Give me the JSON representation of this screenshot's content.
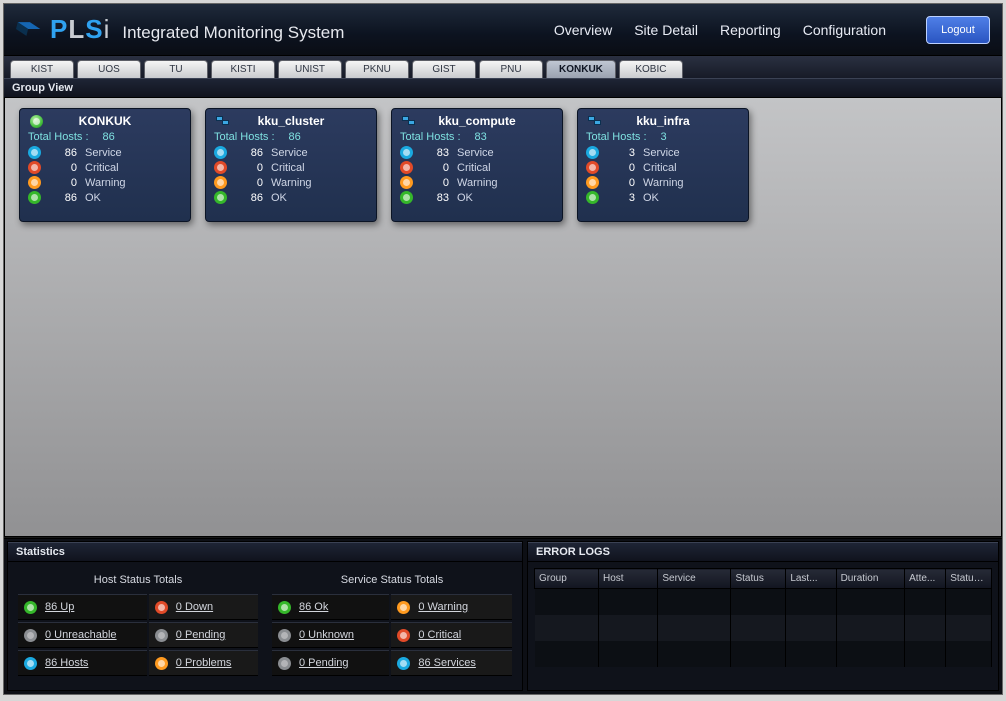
{
  "header": {
    "logo_brand_1": "P",
    "logo_brand_2": "L",
    "logo_brand_3": "S",
    "logo_brand_4": "i",
    "logo_subtitle": "Integrated Monitoring System",
    "logo_fill": "#105c9c",
    "logo_letter_blue": "#2fa2f0",
    "logo_letter_grey": "#c8ccd2",
    "nav": {
      "overview": "Overview",
      "site_detail": "Site Detail",
      "reporting": "Reporting",
      "configuration": "Configuration"
    },
    "logout": "Logout"
  },
  "tabs": [
    "KIST",
    "UOS",
    "TU",
    "KISTI",
    "UNIST",
    "PKNU",
    "GIST",
    "PNU",
    "KONKUK",
    "KOBIC"
  ],
  "active_tab": "KONKUK",
  "group_view": {
    "title": "Group View",
    "total_hosts_label": "Total Hosts :",
    "row_labels": {
      "service": "Service",
      "critical": "Critical",
      "warning": "Warning",
      "ok": "OK"
    },
    "cards": [
      {
        "name": "KONKUK",
        "icon": "green-dot",
        "total": "86",
        "service": "86",
        "critical": "0",
        "warning": "0",
        "ok": "86"
      },
      {
        "name": "kku_cluster",
        "icon": "cluster",
        "total": "86",
        "service": "86",
        "critical": "0",
        "warning": "0",
        "ok": "86"
      },
      {
        "name": "kku_compute",
        "icon": "cluster",
        "total": "83",
        "service": "83",
        "critical": "0",
        "warning": "0",
        "ok": "83"
      },
      {
        "name": "kku_infra",
        "icon": "cluster",
        "total": "3",
        "service": "3",
        "critical": "0",
        "warning": "0",
        "ok": "3"
      }
    ]
  },
  "statistics": {
    "title": "Statistics",
    "host": {
      "heading": "Host Status Totals",
      "up": "86 Up",
      "down": "0 Down",
      "unreachable": "0 Unreachable",
      "pending": "0 Pending",
      "hosts": "86 Hosts",
      "problems": "0 Problems"
    },
    "service": {
      "heading": "Service Status Totals",
      "ok": "86 Ok",
      "warning": "0 Warning",
      "unknown": "0 Unknown",
      "critical": "0 Critical",
      "pending": "0 Pending",
      "services": "86 Services"
    }
  },
  "error_logs": {
    "title": "ERROR LOGS",
    "columns": [
      "Group",
      "Host",
      "Service",
      "Status",
      "Last...",
      "Duration",
      "Atte...",
      "Statusi..."
    ]
  },
  "colors": {
    "blue": "#1aa9e0",
    "green": "#35b72a",
    "orange": "#ff9a1f",
    "red": "#e14a28",
    "grey": "#8a8d91"
  }
}
